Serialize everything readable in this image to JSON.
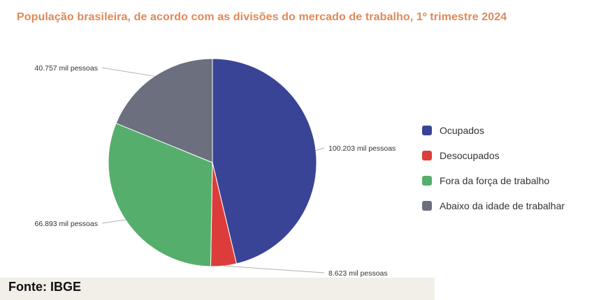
{
  "chart_data": {
    "type": "pie",
    "title": "População brasileira, de acordo com as divisões do mercado de trabalho, 1º trimestre 2024",
    "legend_position": "right",
    "slices": [
      {
        "name": "Ocupados",
        "value": 100203,
        "label": "100.203 mil pessoas",
        "color": "#3a4496"
      },
      {
        "name": "Desocupados",
        "value": 8623,
        "label": "8.623 mil pessoas",
        "color": "#dc3d3a"
      },
      {
        "name": "Fora da força de trabalho",
        "value": 66893,
        "label": "66.893 mil pessoas",
        "color": "#56ae6c"
      },
      {
        "name": "Abaixo da idade de trabalhar",
        "value": 40757,
        "label": "40.757 mil pessoas",
        "color": "#6b6f7e"
      }
    ]
  },
  "source": "Fonte: IBGE"
}
